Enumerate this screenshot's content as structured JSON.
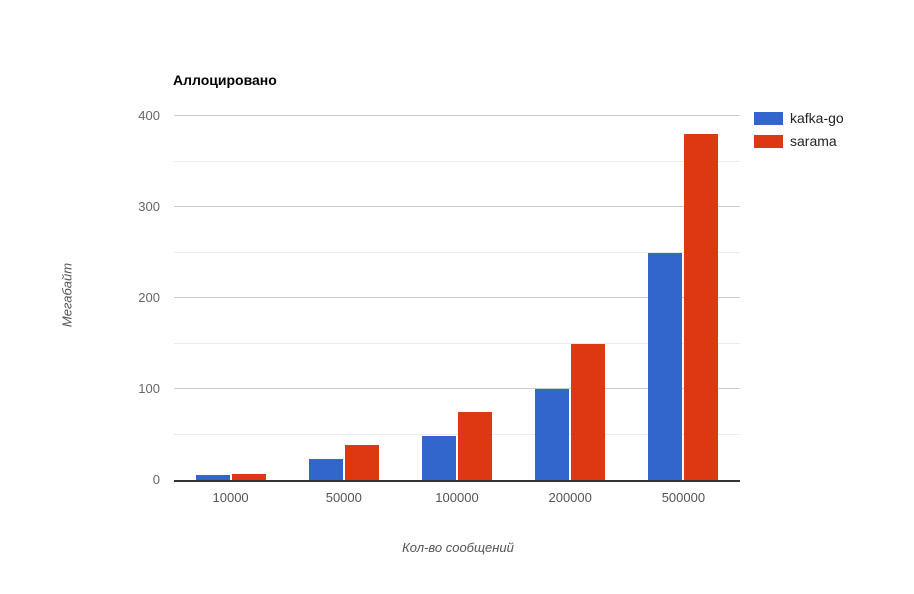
{
  "chart_data": {
    "type": "bar",
    "title": "Аллоцировано",
    "xlabel": "Кол-во сообщений",
    "ylabel": "Мегабайт",
    "categories": [
      "10000",
      "50000",
      "100000",
      "200000",
      "500000"
    ],
    "series": [
      {
        "name": "kafka-go",
        "color": "#3366cc",
        "values": [
          5,
          23,
          48,
          100,
          250
        ]
      },
      {
        "name": "sarama",
        "color": "#dc3912",
        "values": [
          7,
          38,
          75,
          150,
          380
        ]
      }
    ],
    "ylim": [
      0,
      400
    ],
    "yticks": [
      0,
      100,
      200,
      300,
      400
    ],
    "minor_yticks": [
      50,
      150,
      250,
      350
    ],
    "grid": true,
    "legend_position": "right"
  },
  "colors": {
    "major_gridline": "#cccccc",
    "minor_gridline": "#ebebeb",
    "baseline": "#333333",
    "background": "#ffffff"
  }
}
